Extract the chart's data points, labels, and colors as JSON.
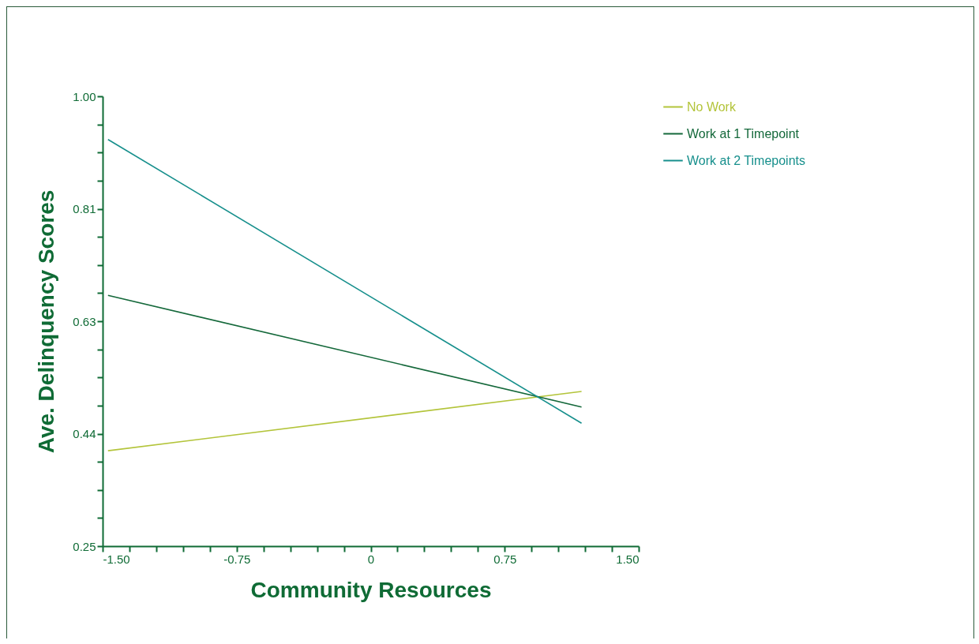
{
  "chart_data": {
    "type": "line",
    "xlabel": "Community Resources",
    "ylabel": "Ave. Delinquency Scores",
    "x": [
      -1.47,
      1.18
    ],
    "series": [
      {
        "name": "No Work",
        "color": "#b3c43a",
        "values": [
          0.409,
          0.508
        ]
      },
      {
        "name": "Work at 1 Timepoint",
        "color": "#14683a",
        "values": [
          0.668,
          0.482
        ]
      },
      {
        "name": "Work at 2 Timepoints",
        "color": "#168f8c",
        "values": [
          0.928,
          0.455
        ]
      }
    ],
    "xlim": [
      -1.5,
      1.5
    ],
    "xticks": [
      {
        "value": -1.5,
        "label": "-1.50"
      },
      {
        "value": -1.35,
        "label": null
      },
      {
        "value": -1.2,
        "label": null
      },
      {
        "value": -1.05,
        "label": null
      },
      {
        "value": -0.9,
        "label": null
      },
      -0.75,
      {
        "value": -0.6,
        "label": null
      },
      {
        "value": -0.45,
        "label": null
      },
      {
        "value": -0.3,
        "label": null
      },
      {
        "value": -0.15,
        "label": null
      },
      0,
      {
        "value": 0.15,
        "label": null
      },
      {
        "value": 0.3,
        "label": null
      },
      {
        "value": 0.45,
        "label": null
      },
      {
        "value": 0.6,
        "label": null
      },
      0.75,
      {
        "value": 0.9,
        "label": null
      },
      {
        "value": 1.05,
        "label": null
      },
      {
        "value": 1.2,
        "label": null
      },
      {
        "value": 1.35,
        "label": null
      },
      {
        "value": 1.5,
        "label": "1.50"
      }
    ],
    "ylim": [
      0.25,
      1.0
    ],
    "yticks": [
      0.25,
      {
        "value": 0.296875,
        "label": null
      },
      {
        "value": 0.34375,
        "label": null
      },
      {
        "value": 0.390625,
        "label": null
      },
      {
        "value": 0.4375,
        "label": "0.44"
      },
      {
        "value": 0.484375,
        "label": null
      },
      {
        "value": 0.53125,
        "label": null
      },
      {
        "value": 0.578125,
        "label": null
      },
      {
        "value": 0.625,
        "label": "0.63"
      },
      {
        "value": 0.671875,
        "label": null
      },
      {
        "value": 0.71875,
        "label": null
      },
      {
        "value": 0.765625,
        "label": null
      },
      {
        "value": 0.8125,
        "label": "0.81"
      },
      {
        "value": 0.859375,
        "label": null
      },
      {
        "value": 0.90625,
        "label": null
      },
      {
        "value": 0.953125,
        "label": null
      },
      {
        "value": 1.0,
        "label": "1.00"
      }
    ],
    "grid": false,
    "legend": "top right",
    "marker": "none",
    "line_style": "solid"
  }
}
